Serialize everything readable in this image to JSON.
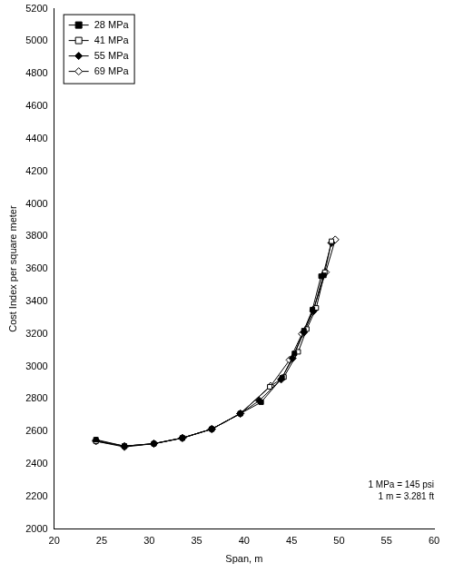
{
  "chart_data": {
    "type": "line",
    "x_label": "Span, m",
    "y_label": "Cost Index per square meter",
    "xlim": [
      20,
      60
    ],
    "xticks": [
      20,
      25,
      30,
      35,
      40,
      45,
      50,
      55,
      60
    ],
    "ylim": [
      2000,
      5200
    ],
    "yticks": [
      2000,
      2200,
      2400,
      2600,
      2800,
      3000,
      3200,
      3400,
      3600,
      3800,
      4000,
      4200,
      4400,
      4600,
      4800,
      5000,
      5200
    ],
    "grid": false,
    "legend": "upper left",
    "annotations": [
      "1 MPa = 145 psi",
      "1 m = 3.281 ft"
    ],
    "series": [
      {
        "name": "28 MPa",
        "color": "#000000",
        "marker": "square",
        "line_style": "solid",
        "x": [
          24.4,
          27.4,
          30.5,
          33.5,
          36.6,
          39.6,
          41.8,
          44.0,
          45.3,
          46.3,
          47.2,
          48.1,
          48.4
        ],
        "values": [
          2550,
          2510,
          2525,
          2560,
          2615,
          2710,
          2780,
          2930,
          3080,
          3220,
          3350,
          3555,
          3560
        ]
      },
      {
        "name": "41 MPa",
        "color": "#000000",
        "marker": "open_square",
        "line_style": "solid",
        "x": [
          24.4,
          27.4,
          30.5,
          33.5,
          36.6,
          39.6,
          42.7,
          44.2,
          45.7,
          46.6,
          47.6,
          48.5,
          49.2
        ],
        "values": [
          2540,
          2510,
          2525,
          2560,
          2615,
          2710,
          2875,
          2935,
          3090,
          3230,
          3360,
          3580,
          3770
        ]
      },
      {
        "name": "55 MPa",
        "color": "#000000",
        "marker": "diamond",
        "line_style": "solid",
        "x": [
          24.4,
          27.4,
          30.5,
          33.5,
          36.6,
          39.6,
          41.6,
          43.9,
          45.1,
          46.3,
          47.3,
          48.3,
          49.2
        ],
        "values": [
          2545,
          2510,
          2525,
          2560,
          2615,
          2710,
          2790,
          2920,
          3050,
          3210,
          3340,
          3560,
          3760
        ]
      },
      {
        "name": "69 MPa",
        "color": "#000000",
        "marker": "open_diamond",
        "line_style": "solid",
        "x": [
          24.4,
          27.4,
          30.5,
          33.5,
          36.6,
          39.6,
          42.8,
          44.8,
          46.1,
          47.3,
          48.6,
          49.6
        ],
        "values": [
          2540,
          2505,
          2525,
          2560,
          2615,
          2710,
          2880,
          3040,
          3200,
          3350,
          3580,
          3780
        ]
      }
    ]
  }
}
